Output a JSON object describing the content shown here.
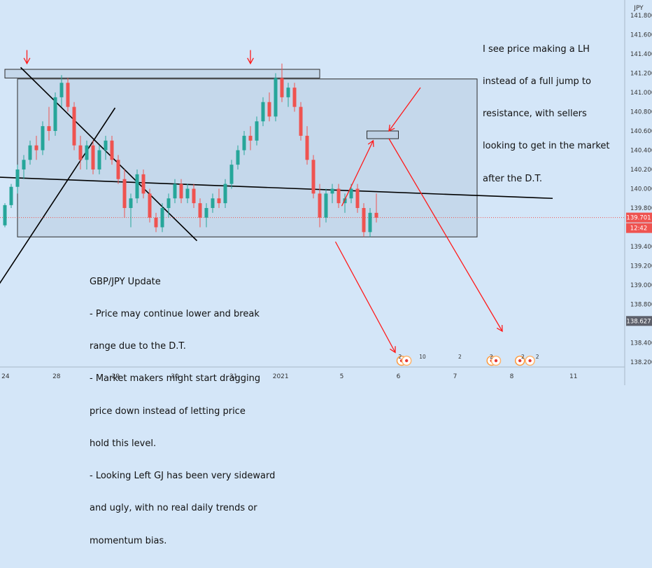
{
  "chart_data": {
    "type": "candlestick",
    "symbol_unit": "JPY",
    "price_axis": {
      "ticks": [
        "141.800",
        "141.600",
        "141.400",
        "141.200",
        "141.000",
        "140.800",
        "140.600",
        "140.400",
        "140.200",
        "140.000",
        "139.800",
        "139.600",
        "139.400",
        "139.200",
        "139.000",
        "138.800",
        "138.600",
        "138.400",
        "138.200"
      ],
      "ylim": [
        138.2,
        141.85
      ]
    },
    "time_axis": {
      "ticks": [
        "24",
        "28",
        "29",
        "30",
        "31",
        "2021",
        "5",
        "6",
        "7",
        "8",
        "11"
      ]
    },
    "price_labels": {
      "current_price": "139.701",
      "countdown": "12:42",
      "cursor_price": "138.627"
    },
    "candles": [
      [
        139.62,
        139.85,
        139.6,
        139.83
      ],
      [
        139.83,
        140.05,
        139.8,
        140.02
      ],
      [
        140.02,
        140.25,
        139.95,
        140.2
      ],
      [
        140.2,
        140.35,
        140.1,
        140.3
      ],
      [
        140.3,
        140.5,
        140.25,
        140.45
      ],
      [
        140.45,
        140.55,
        140.3,
        140.4
      ],
      [
        140.4,
        140.7,
        140.35,
        140.65
      ],
      [
        140.65,
        140.85,
        140.5,
        140.6
      ],
      [
        140.6,
        141.0,
        140.55,
        140.95
      ],
      [
        140.95,
        141.18,
        140.85,
        141.1
      ],
      [
        141.1,
        141.15,
        140.8,
        140.85
      ],
      [
        140.85,
        140.9,
        140.4,
        140.45
      ],
      [
        140.45,
        140.55,
        140.2,
        140.3
      ],
      [
        140.3,
        140.5,
        140.2,
        140.45
      ],
      [
        140.45,
        140.5,
        140.15,
        140.2
      ],
      [
        140.2,
        140.45,
        140.15,
        140.4
      ],
      [
        140.4,
        140.55,
        140.3,
        140.5
      ],
      [
        140.5,
        140.55,
        140.25,
        140.3
      ],
      [
        140.3,
        140.35,
        140.05,
        140.1
      ],
      [
        140.1,
        140.2,
        139.7,
        139.8
      ],
      [
        139.8,
        139.95,
        139.6,
        139.9
      ],
      [
        139.9,
        140.2,
        139.85,
        140.15
      ],
      [
        140.15,
        140.2,
        139.9,
        139.95
      ],
      [
        139.95,
        140.0,
        139.65,
        139.7
      ],
      [
        139.7,
        139.75,
        139.55,
        139.6
      ],
      [
        139.6,
        139.85,
        139.55,
        139.8
      ],
      [
        139.8,
        139.95,
        139.7,
        139.9
      ],
      [
        139.9,
        140.1,
        139.85,
        140.05
      ],
      [
        140.05,
        140.1,
        139.85,
        139.9
      ],
      [
        139.9,
        140.05,
        139.85,
        140.0
      ],
      [
        140.0,
        140.05,
        139.8,
        139.85
      ],
      [
        139.85,
        139.9,
        139.6,
        139.7
      ],
      [
        139.7,
        139.85,
        139.6,
        139.8
      ],
      [
        139.8,
        139.95,
        139.75,
        139.9
      ],
      [
        139.9,
        140.0,
        139.8,
        139.85
      ],
      [
        139.85,
        140.1,
        139.8,
        140.05
      ],
      [
        140.05,
        140.3,
        140.0,
        140.25
      ],
      [
        140.25,
        140.45,
        140.2,
        140.4
      ],
      [
        140.4,
        140.6,
        140.35,
        140.55
      ],
      [
        140.55,
        140.65,
        140.4,
        140.5
      ],
      [
        140.5,
        140.75,
        140.45,
        140.7
      ],
      [
        140.7,
        140.95,
        140.65,
        140.9
      ],
      [
        140.9,
        141.0,
        140.7,
        140.75
      ],
      [
        140.75,
        141.2,
        140.7,
        141.15
      ],
      [
        141.15,
        141.3,
        140.9,
        140.95
      ],
      [
        140.95,
        141.1,
        140.85,
        141.05
      ],
      [
        141.05,
        141.1,
        140.8,
        140.85
      ],
      [
        140.85,
        140.9,
        140.5,
        140.55
      ],
      [
        140.55,
        140.65,
        140.25,
        140.3
      ],
      [
        140.3,
        140.35,
        139.9,
        139.95
      ],
      [
        139.95,
        140.05,
        139.6,
        139.7
      ],
      [
        139.7,
        140.0,
        139.65,
        139.95
      ],
      [
        139.95,
        140.05,
        139.85,
        140.0
      ],
      [
        140.0,
        140.05,
        139.8,
        139.85
      ],
      [
        139.85,
        139.95,
        139.75,
        139.9
      ],
      [
        139.9,
        140.05,
        139.85,
        140.0
      ],
      [
        140.0,
        140.05,
        139.75,
        139.8
      ],
      [
        139.8,
        139.85,
        139.5,
        139.55
      ],
      [
        139.55,
        139.8,
        139.5,
        139.75
      ],
      [
        139.75,
        139.95,
        139.65,
        139.7
      ]
    ],
    "rectangles": [
      {
        "name": "resistance-zone",
        "t0": 0.0,
        "t1": 50.0,
        "p0": 141.15,
        "p1": 141.24
      },
      {
        "name": "range-box",
        "t0": 2.0,
        "t1": 75.0,
        "p0": 139.5,
        "p1": 141.14
      },
      {
        "name": "target-zone",
        "t0": 57.5,
        "t1": 62.5,
        "p0": 140.52,
        "p1": 140.6
      }
    ],
    "lines": [
      {
        "name": "neckline",
        "t0": -1.0,
        "p0": 140.12,
        "t1": 87.0,
        "p1": 139.9
      },
      {
        "name": "descending-line",
        "t0": 2.5,
        "p0": 141.26,
        "t1": 30.5,
        "p1": 139.46
      },
      {
        "name": "ascending-line",
        "t0": -1.0,
        "p0": 139.0,
        "t1": 17.5,
        "p1": 140.84
      }
    ],
    "arrows": [
      {
        "name": "arrow-high-left",
        "t0": 3.5,
        "p0": 141.44,
        "t1": 3.5,
        "p1": 141.3
      },
      {
        "name": "arrow-high-right",
        "t0": 39.0,
        "p0": 141.44,
        "t1": 39.0,
        "p1": 141.3
      },
      {
        "name": "arrow-up-to-zone",
        "t0": 53.5,
        "p0": 139.82,
        "t1": 58.5,
        "p1": 140.5
      },
      {
        "name": "arrow-from-note",
        "t0": 66.0,
        "p0": 141.05,
        "t1": 61.0,
        "p1": 140.6
      },
      {
        "name": "arrow-down-left",
        "t0": 52.5,
        "p0": 139.45,
        "t1": 62.0,
        "p1": 138.3
      },
      {
        "name": "arrow-down-right",
        "t0": 61.0,
        "p0": 140.52,
        "t1": 79.0,
        "p1": 138.52
      }
    ],
    "annotations": {
      "top_right": [
        "I see price making a LH",
        "instead of a full jump to",
        "resistance, with sellers",
        "looking to get in the market",
        "after the D.T."
      ],
      "bottom_left": [
        "GBP/JPY Update",
        "- Price may continue lower and break",
        "range due to the D.T.",
        "- Market makers might start dragging",
        "price down instead of letting price",
        "hold this level.",
        "- Looking Left GJ has been very sideward",
        "and ugly, with no real daily trends or",
        "momentum bias."
      ]
    },
    "event_badges": [
      "2",
      "10",
      "2",
      "2",
      "2",
      "2"
    ],
    "colors": {
      "background": "#d4e6f8",
      "bull": "#26a69a",
      "bear": "#ef5350",
      "box_fill": "#b8cce0",
      "arrow": "#ff1a1a",
      "current_price": "#ef5350",
      "cursor_price": "#5d606b"
    }
  }
}
